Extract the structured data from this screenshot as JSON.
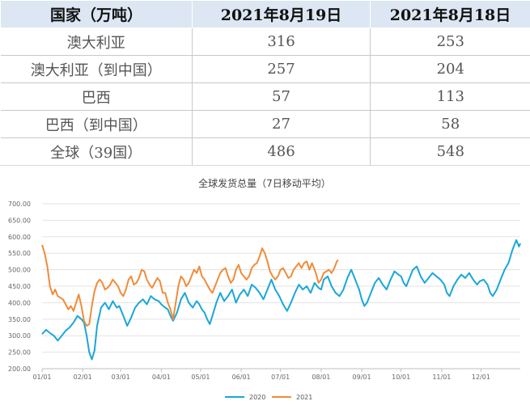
{
  "table": {
    "headers": [
      "国家（万吨）",
      "2021年8月19日",
      "2021年8月18日"
    ],
    "rows": [
      {
        "country": "澳大利亚",
        "v1": "316",
        "v2": "253"
      },
      {
        "country": "澳大利亚（到中国）",
        "v1": "257",
        "v2": "204"
      },
      {
        "country": "巴西",
        "v1": "57",
        "v2": "113"
      },
      {
        "country": "巴西（到中国）",
        "v1": "27",
        "v2": "58"
      },
      {
        "country": "全球（39国）",
        "v1": "486",
        "v2": "548"
      }
    ]
  },
  "chart_data": {
    "type": "line",
    "title": "全球发货总量（7日移动平均）",
    "ylim": [
      200,
      700
    ],
    "yticks": [
      "200.00",
      "250.00",
      "300.00",
      "350.00",
      "400.00",
      "450.00",
      "500.00",
      "550.00",
      "600.00",
      "650.00",
      "700.00"
    ],
    "xticks": [
      "01/01",
      "02/01",
      "03/01",
      "04/01",
      "05/01",
      "06/01",
      "07/01",
      "08/01",
      "09/01",
      "10/01",
      "11/01",
      "12/01"
    ],
    "legend_position": "bottom",
    "colors": {
      "2020": "#1aa7d9",
      "2021": "#f08c3a",
      "grid": "#e3e3e3",
      "axis": "#bfbfbf"
    },
    "series": [
      {
        "name": "2020",
        "points": [
          [
            1,
            305
          ],
          [
            4,
            318
          ],
          [
            7,
            308
          ],
          [
            10,
            300
          ],
          [
            13,
            285
          ],
          [
            16,
            300
          ],
          [
            19,
            315
          ],
          [
            22,
            325
          ],
          [
            25,
            340
          ],
          [
            28,
            360
          ],
          [
            31,
            350
          ],
          [
            33,
            340
          ],
          [
            35,
            300
          ],
          [
            37,
            250
          ],
          [
            39,
            228
          ],
          [
            41,
            255
          ],
          [
            43,
            330
          ],
          [
            46,
            385
          ],
          [
            49,
            400
          ],
          [
            52,
            380
          ],
          [
            55,
            405
          ],
          [
            58,
            385
          ],
          [
            60,
            390
          ],
          [
            62,
            370
          ],
          [
            64,
            350
          ],
          [
            66,
            330
          ],
          [
            69,
            355
          ],
          [
            72,
            385
          ],
          [
            75,
            400
          ],
          [
            78,
            410
          ],
          [
            81,
            395
          ],
          [
            84,
            420
          ],
          [
            87,
            410
          ],
          [
            90,
            405
          ],
          [
            92,
            395
          ],
          [
            95,
            385
          ],
          [
            97,
            380
          ],
          [
            99,
            360
          ],
          [
            101,
            345
          ],
          [
            104,
            370
          ],
          [
            107,
            410
          ],
          [
            110,
            430
          ],
          [
            113,
            400
          ],
          [
            116,
            385
          ],
          [
            119,
            405
          ],
          [
            121,
            395
          ],
          [
            123,
            380
          ],
          [
            125,
            370
          ],
          [
            127,
            350
          ],
          [
            129,
            335
          ],
          [
            131,
            360
          ],
          [
            134,
            400
          ],
          [
            137,
            430
          ],
          [
            140,
            405
          ],
          [
            143,
            420
          ],
          [
            146,
            440
          ],
          [
            149,
            400
          ],
          [
            152,
            425
          ],
          [
            155,
            440
          ],
          [
            158,
            420
          ],
          [
            161,
            455
          ],
          [
            164,
            445
          ],
          [
            167,
            430
          ],
          [
            170,
            410
          ],
          [
            173,
            440
          ],
          [
            176,
            470
          ],
          [
            179,
            440
          ],
          [
            182,
            420
          ],
          [
            185,
            395
          ],
          [
            188,
            375
          ],
          [
            191,
            400
          ],
          [
            194,
            430
          ],
          [
            197,
            455
          ],
          [
            200,
            440
          ],
          [
            203,
            450
          ],
          [
            206,
            430
          ],
          [
            209,
            460
          ],
          [
            212,
            445
          ],
          [
            214,
            440
          ],
          [
            216,
            470
          ],
          [
            219,
            480
          ],
          [
            222,
            450
          ],
          [
            225,
            430
          ],
          [
            228,
            420
          ],
          [
            231,
            440
          ],
          [
            234,
            475
          ],
          [
            237,
            500
          ],
          [
            240,
            470
          ],
          [
            243,
            440
          ],
          [
            245,
            410
          ],
          [
            247,
            390
          ],
          [
            249,
            400
          ],
          [
            252,
            430
          ],
          [
            255,
            460
          ],
          [
            258,
            475
          ],
          [
            261,
            455
          ],
          [
            264,
            440
          ],
          [
            267,
            470
          ],
          [
            270,
            495
          ],
          [
            273,
            485
          ],
          [
            275,
            480
          ],
          [
            277,
            460
          ],
          [
            279,
            450
          ],
          [
            281,
            470
          ],
          [
            284,
            500
          ],
          [
            287,
            510
          ],
          [
            290,
            480
          ],
          [
            293,
            460
          ],
          [
            296,
            475
          ],
          [
            299,
            490
          ],
          [
            302,
            480
          ],
          [
            305,
            470
          ],
          [
            308,
            455
          ],
          [
            310,
            430
          ],
          [
            312,
            420
          ],
          [
            315,
            450
          ],
          [
            318,
            470
          ],
          [
            321,
            485
          ],
          [
            324,
            475
          ],
          [
            327,
            490
          ],
          [
            330,
            470
          ],
          [
            333,
            455
          ],
          [
            335,
            465
          ],
          [
            338,
            470
          ],
          [
            341,
            455
          ],
          [
            343,
            430
          ],
          [
            345,
            420
          ],
          [
            348,
            440
          ],
          [
            351,
            470
          ],
          [
            354,
            500
          ],
          [
            357,
            520
          ],
          [
            360,
            560
          ],
          [
            363,
            590
          ],
          [
            365,
            570
          ],
          [
            366,
            580
          ]
        ]
      },
      {
        "name": "2021",
        "points": [
          [
            1,
            575
          ],
          [
            3,
            550
          ],
          [
            5,
            510
          ],
          [
            7,
            450
          ],
          [
            9,
            425
          ],
          [
            11,
            440
          ],
          [
            13,
            420
          ],
          [
            15,
            415
          ],
          [
            17,
            410
          ],
          [
            19,
            395
          ],
          [
            21,
            380
          ],
          [
            23,
            390
          ],
          [
            25,
            375
          ],
          [
            27,
            400
          ],
          [
            29,
            425
          ],
          [
            31,
            390
          ],
          [
            33,
            345
          ],
          [
            35,
            330
          ],
          [
            37,
            335
          ],
          [
            39,
            390
          ],
          [
            41,
            435
          ],
          [
            43,
            460
          ],
          [
            45,
            470
          ],
          [
            47,
            460
          ],
          [
            49,
            440
          ],
          [
            51,
            445
          ],
          [
            53,
            455
          ],
          [
            55,
            470
          ],
          [
            57,
            460
          ],
          [
            59,
            450
          ],
          [
            61,
            430
          ],
          [
            63,
            420
          ],
          [
            65,
            440
          ],
          [
            67,
            470
          ],
          [
            69,
            480
          ],
          [
            71,
            455
          ],
          [
            73,
            460
          ],
          [
            75,
            475
          ],
          [
            77,
            500
          ],
          [
            79,
            495
          ],
          [
            81,
            470
          ],
          [
            83,
            455
          ],
          [
            85,
            445
          ],
          [
            87,
            460
          ],
          [
            89,
            475
          ],
          [
            91,
            465
          ],
          [
            93,
            430
          ],
          [
            95,
            430
          ],
          [
            97,
            400
          ],
          [
            99,
            380
          ],
          [
            101,
            350
          ],
          [
            103,
            400
          ],
          [
            105,
            450
          ],
          [
            107,
            480
          ],
          [
            109,
            470
          ],
          [
            111,
            450
          ],
          [
            113,
            460
          ],
          [
            115,
            480
          ],
          [
            117,
            500
          ],
          [
            119,
            490
          ],
          [
            121,
            510
          ],
          [
            123,
            480
          ],
          [
            125,
            470
          ],
          [
            127,
            455
          ],
          [
            129,
            440
          ],
          [
            131,
            430
          ],
          [
            133,
            450
          ],
          [
            135,
            470
          ],
          [
            137,
            490
          ],
          [
            139,
            500
          ],
          [
            141,
            505
          ],
          [
            143,
            480
          ],
          [
            145,
            460
          ],
          [
            147,
            470
          ],
          [
            149,
            500
          ],
          [
            151,
            515
          ],
          [
            153,
            490
          ],
          [
            155,
            480
          ],
          [
            157,
            470
          ],
          [
            159,
            480
          ],
          [
            161,
            505
          ],
          [
            163,
            515
          ],
          [
            165,
            520
          ],
          [
            167,
            540
          ],
          [
            169,
            565
          ],
          [
            171,
            550
          ],
          [
            173,
            525
          ],
          [
            175,
            495
          ],
          [
            177,
            480
          ],
          [
            179,
            470
          ],
          [
            181,
            480
          ],
          [
            183,
            500
          ],
          [
            185,
            505
          ],
          [
            187,
            490
          ],
          [
            189,
            475
          ],
          [
            191,
            480
          ],
          [
            193,
            500
          ],
          [
            195,
            510
          ],
          [
            197,
            520
          ],
          [
            199,
            505
          ],
          [
            201,
            520
          ],
          [
            203,
            525
          ],
          [
            205,
            500
          ],
          [
            207,
            520
          ],
          [
            209,
            500
          ],
          [
            210,
            490
          ],
          [
            212,
            460
          ],
          [
            214,
            470
          ],
          [
            216,
            490
          ],
          [
            218,
            495
          ],
          [
            220,
            500
          ],
          [
            222,
            490
          ],
          [
            224,
            505
          ],
          [
            226,
            525
          ],
          [
            227,
            530
          ]
        ]
      }
    ]
  }
}
